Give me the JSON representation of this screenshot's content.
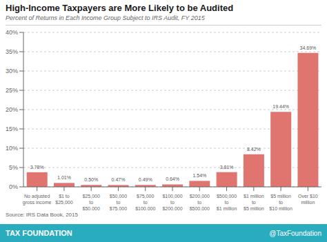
{
  "chart_data": {
    "type": "bar",
    "title": "High-Income Taxpayers are More Likely to be Audited",
    "subtitle": "Percent of Returns in Each Income Group Subject to IRS Audit, FY 2015",
    "annotations": [
      "Source: IRS Data Book, 2015",
      "TAX FOUNDATION",
      "@TaxFoundation"
    ],
    "categories": [
      "No adjusted\ngross income",
      "$1 to\n$25,000",
      "$25,000\nto\n$50,000",
      "$50,000\nto\n$75,000",
      "$75,000\nto\n$100,000",
      "$100,000\nto\n$200,000",
      "$200,000\nto\n$500,000",
      "$500,000\nto\n$1 million",
      "$1 million\nto\n$5 million",
      "$5 million\nto\n$10 million",
      "Over $10\nmillion"
    ],
    "values": [
      3.78,
      1.01,
      0.5,
      0.47,
      0.49,
      0.64,
      1.54,
      3.81,
      8.42,
      19.44,
      34.69
    ],
    "value_labels": [
      "3.78%",
      "1.01%",
      "0.50%",
      "0.47%",
      "0.49%",
      "0.64%",
      "1.54%",
      "3.81%",
      "8.42%",
      "19.44%",
      "34.69%"
    ],
    "data_labels": true,
    "color": "#e07570",
    "ylim": [
      0,
      40
    ],
    "yticks": [
      {
        "value": 0,
        "label": "0%"
      },
      {
        "value": 5,
        "label": "5%"
      },
      {
        "value": 10,
        "label": "10%"
      },
      {
        "value": 15,
        "label": "15%"
      },
      {
        "value": 20,
        "label": "20%"
      },
      {
        "value": 25,
        "label": "25%"
      },
      {
        "value": 30,
        "label": "30%"
      },
      {
        "value": 35,
        "label": "35%"
      },
      {
        "value": 40,
        "label": "40%"
      }
    ],
    "grid": true
  }
}
